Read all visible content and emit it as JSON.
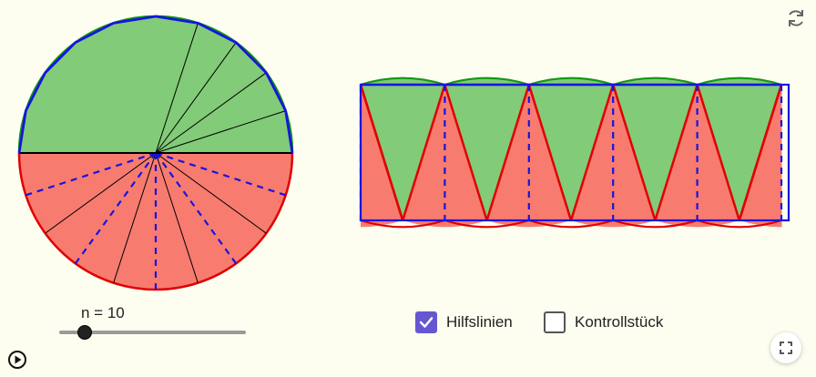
{
  "slider": {
    "label": "n = 10",
    "value": 10,
    "min": 2,
    "max": 60
  },
  "checkboxes": [
    {
      "label": "Hilfslinien",
      "checked": true
    },
    {
      "label": "Kontrollstück",
      "checked": false
    }
  ],
  "colors": {
    "green_fill": "#82cb78",
    "green_stroke": "#119911",
    "red_fill": "#f87b70",
    "red_stroke": "#e00000",
    "blue": "#1515e0",
    "accent": "#6557d2"
  },
  "icons": [
    "reset-icon",
    "play-icon",
    "check-icon",
    "fullscreen-icon"
  ]
}
